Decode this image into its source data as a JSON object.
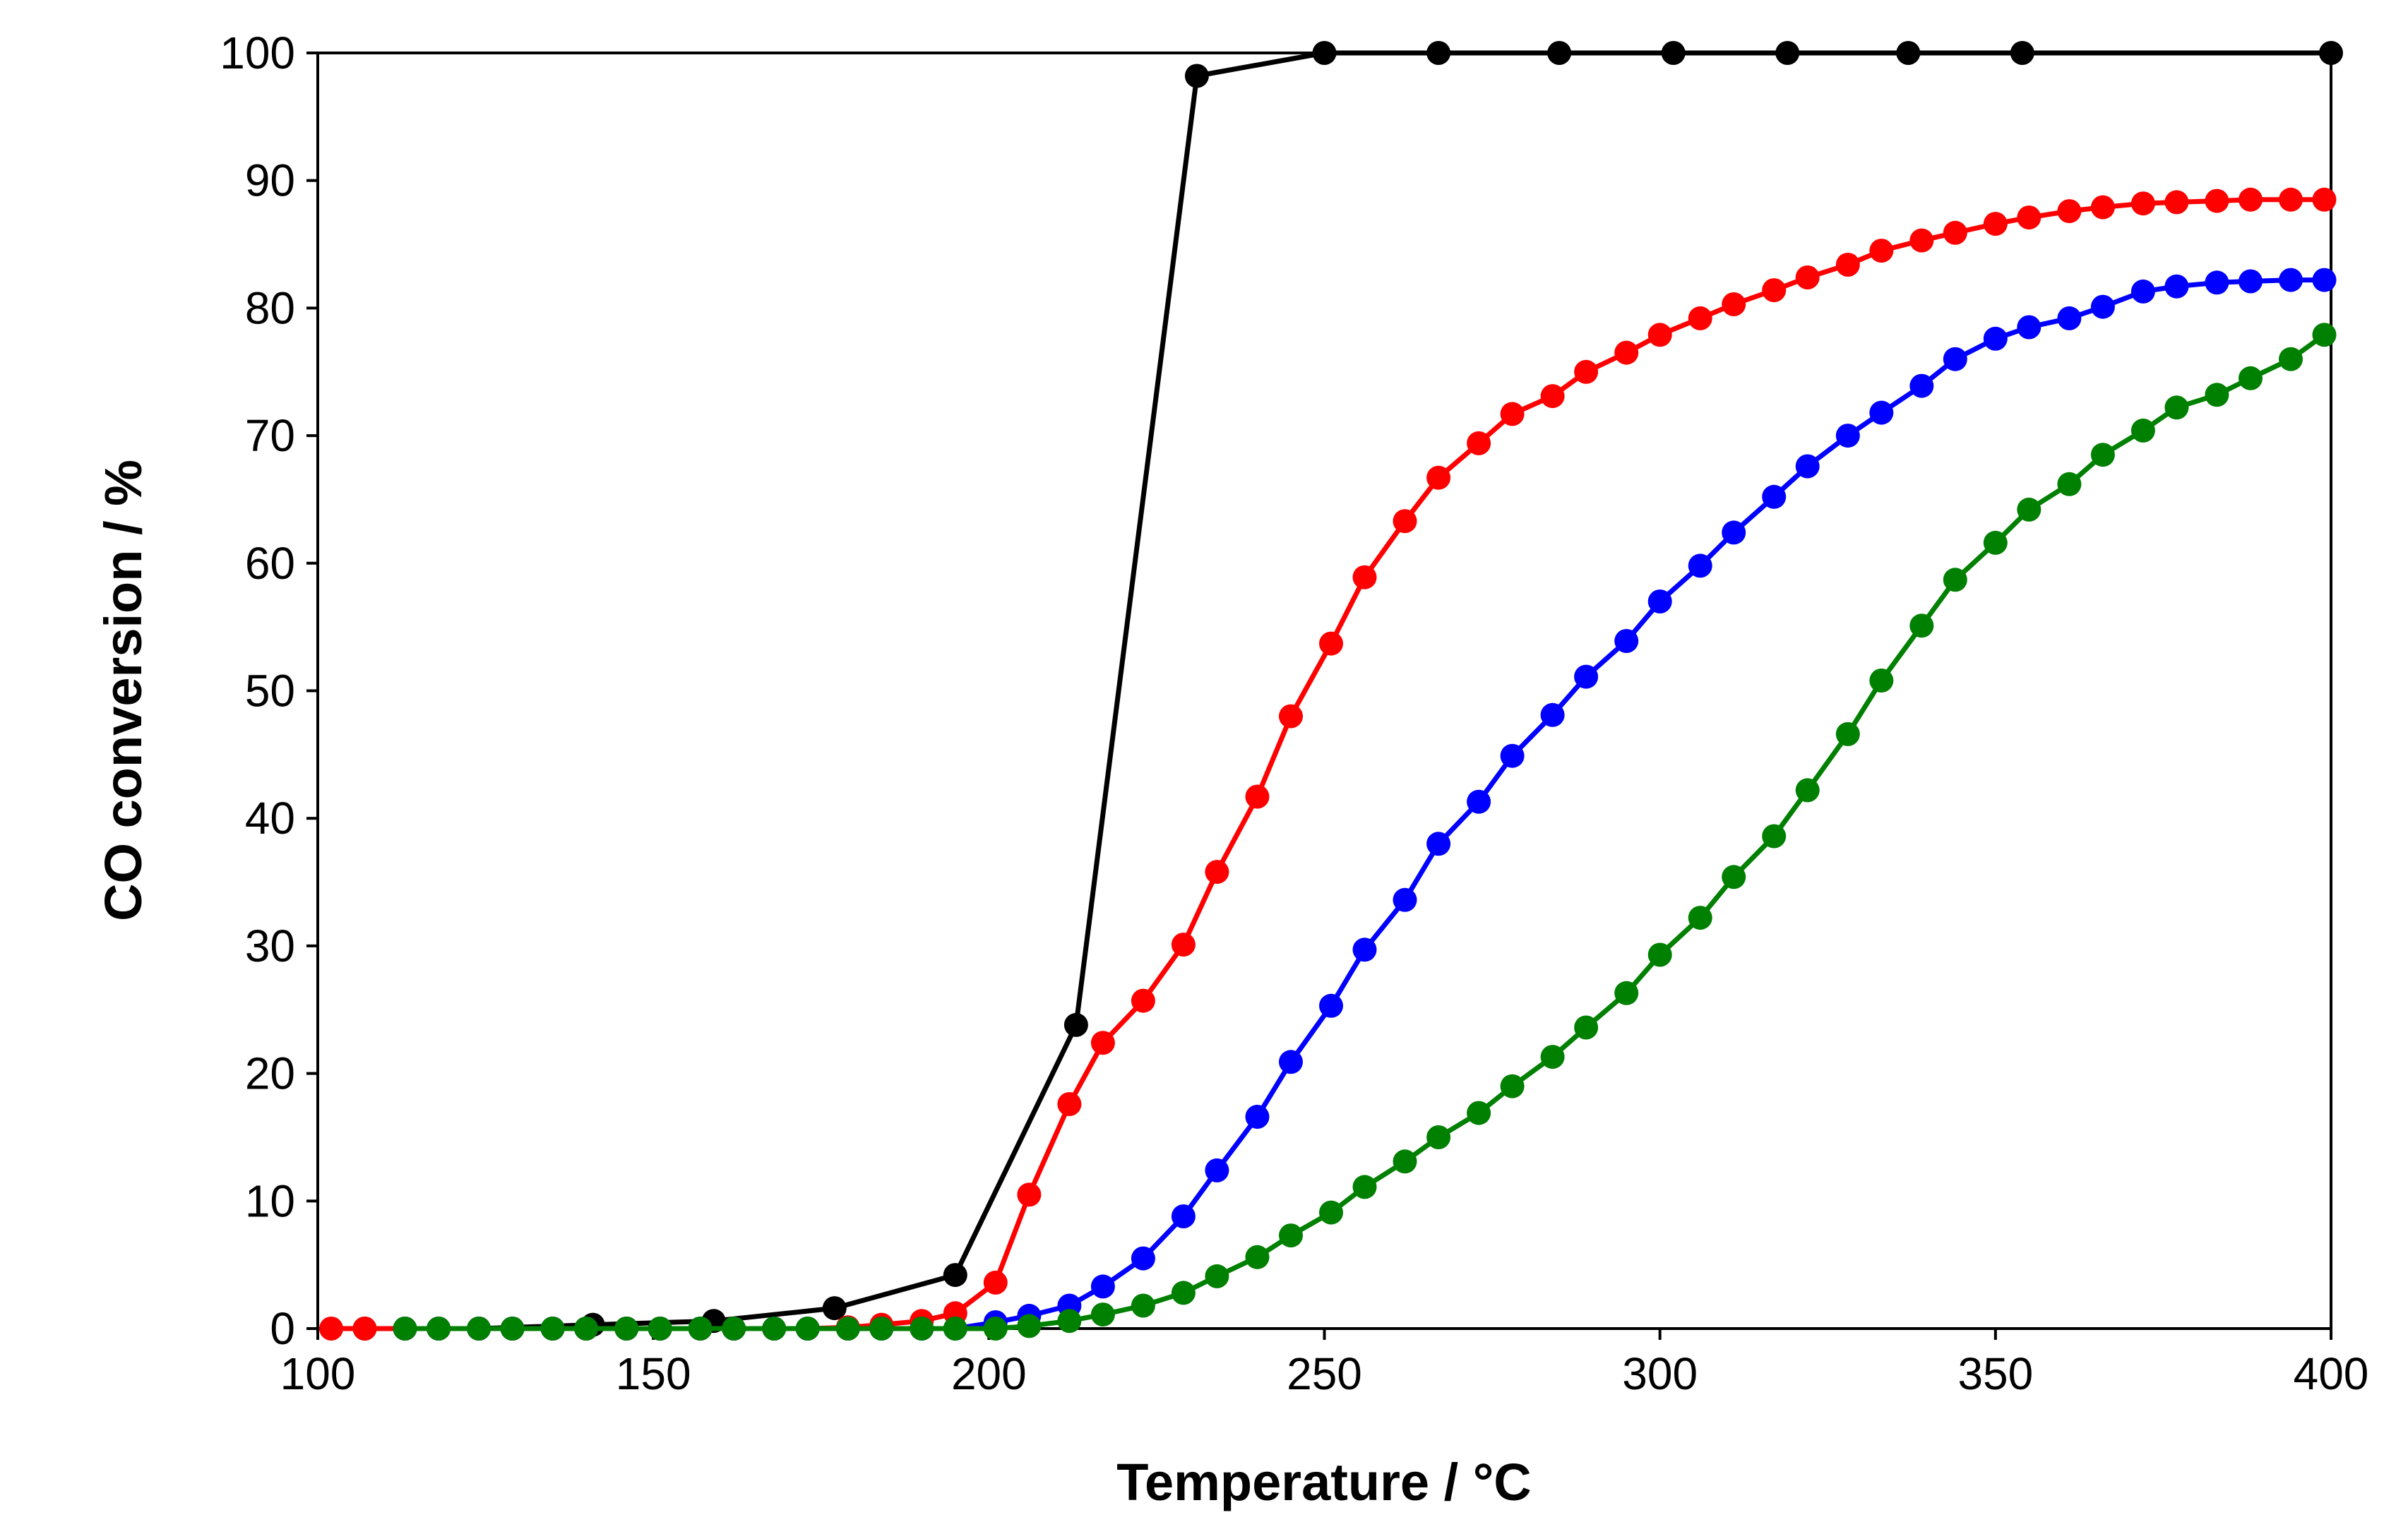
{
  "chart_data": {
    "type": "line",
    "title": "",
    "xlabel": "Temperature / °C",
    "ylabel": "CO conversion / %",
    "xlim": [
      100,
      400
    ],
    "ylim": [
      0,
      100
    ],
    "xticks": [
      100,
      150,
      200,
      250,
      300,
      350,
      400
    ],
    "yticks": [
      0,
      10,
      20,
      30,
      40,
      50,
      60,
      70,
      80,
      90,
      100
    ],
    "grid": false,
    "legend": "none",
    "series": [
      {
        "name": "black",
        "color": "#000000",
        "x": [
          107,
          124,
          141,
          159,
          177,
          195,
          213,
          231,
          250,
          267,
          285,
          302,
          319,
          337,
          354,
          400
        ],
        "y": [
          0,
          0,
          0.3,
          0.6,
          1.6,
          4.2,
          23.8,
          98.2,
          100,
          100,
          100,
          100,
          100,
          100,
          100,
          100
        ]
      },
      {
        "name": "red",
        "color": "#ff0000",
        "x": [
          102,
          107,
          113,
          118,
          124,
          129,
          135,
          140,
          146,
          151,
          157,
          162,
          168,
          173,
          179,
          184,
          190,
          195,
          201,
          206,
          212,
          217,
          223,
          229,
          234,
          240,
          245,
          251,
          256,
          262,
          267,
          273,
          278,
          284,
          289,
          295,
          300,
          306,
          311,
          317,
          322,
          328,
          333,
          339,
          344,
          350,
          355,
          361,
          366,
          372,
          377,
          383,
          388,
          394,
          399
        ],
        "y": [
          0,
          0,
          0,
          0,
          0,
          0,
          0,
          0,
          0,
          0,
          0,
          0,
          0,
          0,
          0.1,
          0.3,
          0.6,
          1.2,
          3.6,
          10.5,
          17.6,
          22.4,
          25.7,
          30.1,
          35.8,
          41.7,
          48.0,
          53.7,
          58.9,
          63.3,
          66.7,
          69.4,
          71.7,
          73.1,
          75.0,
          76.5,
          77.9,
          79.2,
          80.3,
          81.4,
          82.4,
          83.4,
          84.5,
          85.3,
          85.9,
          86.6,
          87.1,
          87.6,
          87.9,
          88.2,
          88.3,
          88.4,
          88.5,
          88.5,
          88.5
        ]
      },
      {
        "name": "blue",
        "color": "#0000ff",
        "x": [
          113,
          118,
          124,
          129,
          135,
          140,
          146,
          151,
          157,
          162,
          168,
          173,
          179,
          184,
          190,
          195,
          201,
          206,
          212,
          217,
          223,
          229,
          234,
          240,
          245,
          251,
          256,
          262,
          267,
          273,
          278,
          284,
          289,
          295,
          300,
          306,
          311,
          317,
          322,
          328,
          333,
          339,
          344,
          350,
          355,
          361,
          366,
          372,
          377,
          383,
          388,
          394,
          399
        ],
        "y": [
          0,
          0,
          0,
          0,
          0,
          0,
          0,
          0,
          0,
          0,
          0,
          0,
          0,
          0,
          0,
          0,
          0.5,
          1.0,
          1.8,
          3.3,
          5.5,
          8.8,
          12.4,
          16.6,
          20.9,
          25.3,
          29.7,
          33.6,
          38.0,
          41.3,
          44.9,
          48.1,
          51.1,
          53.9,
          57.0,
          59.8,
          62.4,
          65.2,
          67.6,
          70.0,
          71.8,
          73.9,
          76.0,
          77.6,
          78.5,
          79.2,
          80.1,
          81.3,
          81.7,
          82.0,
          82.1,
          82.2,
          82.2
        ]
      },
      {
        "name": "green",
        "color": "#008000",
        "x": [
          113,
          118,
          124,
          129,
          135,
          140,
          146,
          151,
          157,
          162,
          168,
          173,
          179,
          184,
          190,
          195,
          201,
          206,
          212,
          217,
          223,
          229,
          234,
          240,
          245,
          251,
          256,
          262,
          267,
          273,
          278,
          284,
          289,
          295,
          300,
          306,
          311,
          317,
          322,
          328,
          333,
          339,
          344,
          350,
          355,
          361,
          366,
          372,
          377,
          383,
          388,
          394,
          399
        ],
        "y": [
          0,
          0,
          0,
          0,
          0,
          0,
          0,
          0,
          0,
          0,
          0,
          0,
          0,
          0,
          0,
          0,
          0,
          0.2,
          0.6,
          1.1,
          1.8,
          2.8,
          4.1,
          5.6,
          7.3,
          9.1,
          11.1,
          13.1,
          15.0,
          16.9,
          19.0,
          21.3,
          23.6,
          26.3,
          29.3,
          32.2,
          35.4,
          38.6,
          42.2,
          46.6,
          50.8,
          55.1,
          58.7,
          61.6,
          64.2,
          66.2,
          68.5,
          70.4,
          72.2,
          73.2,
          74.5,
          76.0,
          77.9
        ]
      }
    ]
  }
}
